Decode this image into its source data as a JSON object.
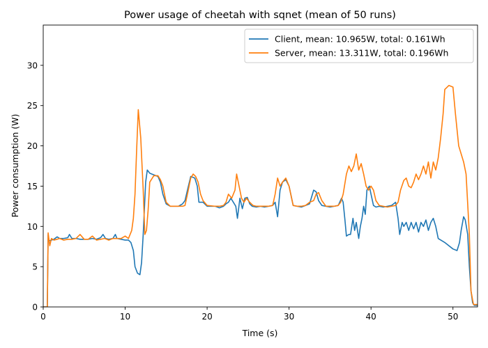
{
  "chart_data": {
    "type": "line",
    "title": "Power usage of cheetah with sqnet (mean of 50 runs)",
    "xlabel": "Time (s)",
    "ylabel": "Power consumption (W)",
    "xlim": [
      0,
      53
    ],
    "ylim": [
      0,
      35
    ],
    "xticks": [
      0,
      10,
      20,
      30,
      40,
      50
    ],
    "yticks": [
      0,
      5,
      10,
      15,
      20,
      25,
      30
    ],
    "grid": false,
    "legend_position": "top-right",
    "series": [
      {
        "name": "Client, mean: 10.965W, total: 0.161Wh",
        "color": "#1f77b4",
        "x": [
          0,
          0.5,
          0.6,
          0.7,
          1.0,
          1.3,
          1.7,
          2.0,
          2.5,
          3.0,
          3.2,
          3.5,
          4.0,
          4.5,
          5.0,
          5.5,
          6.0,
          6.5,
          7.0,
          7.3,
          7.6,
          8.0,
          8.5,
          8.8,
          9.0,
          9.5,
          10.0,
          10.4,
          10.7,
          11.0,
          11.2,
          11.5,
          11.8,
          12.0,
          12.2,
          12.5,
          12.7,
          13.0,
          13.5,
          14.0,
          14.3,
          14.6,
          15.0,
          15.5,
          16.0,
          16.5,
          17.0,
          17.3,
          17.6,
          18.0,
          18.5,
          18.8,
          19.0,
          19.5,
          20.0,
          21.0,
          21.5,
          22.0,
          22.3,
          22.6,
          22.9,
          23.2,
          23.5,
          23.7,
          24.0,
          24.3,
          24.6,
          24.9,
          25.2,
          25.5,
          26.0,
          26.5,
          27.0,
          27.5,
          28.0,
          28.3,
          28.6,
          28.9,
          29.2,
          29.6,
          30.0,
          30.5,
          31.0,
          31.5,
          32.0,
          32.5,
          33.0,
          33.3,
          33.6,
          34.0,
          34.5,
          35.0,
          35.5,
          36.0,
          36.4,
          36.6,
          36.8,
          37.0,
          37.3,
          37.5,
          37.8,
          38.0,
          38.2,
          38.5,
          38.7,
          38.9,
          39.1,
          39.3,
          39.5,
          39.8,
          40.0,
          40.3,
          40.6,
          41.0,
          41.5,
          42.0,
          42.5,
          43.0,
          43.3,
          43.5,
          43.8,
          44.0,
          44.3,
          44.6,
          44.9,
          45.2,
          45.5,
          45.8,
          46.1,
          46.4,
          46.7,
          47.0,
          47.3,
          47.6,
          47.9,
          48.2,
          49.0,
          50.0,
          50.5,
          50.8,
          51.0,
          51.3,
          51.5,
          51.8,
          52.0,
          52.2,
          52.4,
          52.6,
          53.0
        ],
        "y": [
          0,
          0,
          9.0,
          8.2,
          8.3,
          8.4,
          8.7,
          8.5,
          8.5,
          8.6,
          9.0,
          8.5,
          8.5,
          8.4,
          8.4,
          8.4,
          8.5,
          8.4,
          8.6,
          9.0,
          8.5,
          8.4,
          8.5,
          9.0,
          8.5,
          8.4,
          8.3,
          8.3,
          8.0,
          7.0,
          5.0,
          4.2,
          4.0,
          5.5,
          9.0,
          15.5,
          17.0,
          16.6,
          16.4,
          16.2,
          15.5,
          14.0,
          12.8,
          12.5,
          12.5,
          12.5,
          12.8,
          13.2,
          14.5,
          16.2,
          16.0,
          15.0,
          13.0,
          13.0,
          12.5,
          12.5,
          12.3,
          12.5,
          12.8,
          13.0,
          13.5,
          13.0,
          12.5,
          11.0,
          13.5,
          12.2,
          13.5,
          13.6,
          12.8,
          12.5,
          12.4,
          12.5,
          12.4,
          12.5,
          12.6,
          13.0,
          11.2,
          14.5,
          15.5,
          15.8,
          15.0,
          12.6,
          12.5,
          12.4,
          12.6,
          12.8,
          14.5,
          14.3,
          13.2,
          12.6,
          12.5,
          12.4,
          12.5,
          12.6,
          13.5,
          13.0,
          11.0,
          8.8,
          9.0,
          9.0,
          11.0,
          9.5,
          10.5,
          8.5,
          10.0,
          11.0,
          12.5,
          11.5,
          14.5,
          15.0,
          14.0,
          12.6,
          12.4,
          12.5,
          12.4,
          12.5,
          12.6,
          13.0,
          11.0,
          9.0,
          10.5,
          10.0,
          10.5,
          9.5,
          10.5,
          9.7,
          10.5,
          9.3,
          10.5,
          10.0,
          10.8,
          9.5,
          10.5,
          11.0,
          10.0,
          8.5,
          8.0,
          7.2,
          7.0,
          8.0,
          9.5,
          11.2,
          10.8,
          9.0,
          5.0,
          2.0,
          0.5,
          0.2,
          0.2
        ]
      },
      {
        "name": "Server, mean: 13.311W, total: 0.196Wh",
        "color": "#ff7f0e",
        "x": [
          0,
          0.5,
          0.6,
          0.8,
          1.0,
          1.3,
          1.7,
          2.0,
          2.5,
          3.0,
          3.5,
          4.0,
          4.5,
          5.0,
          5.5,
          6.0,
          6.5,
          7.0,
          7.5,
          8.0,
          8.5,
          9.0,
          9.5,
          10.0,
          10.4,
          10.8,
          11.0,
          11.2,
          11.4,
          11.6,
          11.9,
          12.2,
          12.4,
          12.6,
          12.8,
          13.0,
          13.5,
          14.0,
          14.3,
          14.6,
          15.0,
          15.5,
          16.0,
          16.5,
          17.0,
          17.3,
          17.6,
          18.0,
          18.3,
          18.6,
          18.9,
          19.2,
          19.5,
          20.0,
          21.0,
          21.5,
          22.0,
          22.3,
          22.6,
          23.0,
          23.4,
          23.6,
          23.9,
          24.2,
          24.5,
          24.8,
          25.2,
          25.6,
          26.0,
          26.5,
          27.0,
          27.5,
          28.0,
          28.3,
          28.6,
          28.9,
          29.2,
          29.6,
          30.0,
          30.5,
          31.0,
          31.5,
          32.0,
          32.5,
          33.0,
          33.3,
          33.6,
          34.0,
          34.5,
          35.0,
          35.5,
          36.0,
          36.3,
          36.6,
          37.0,
          37.3,
          37.6,
          37.9,
          38.2,
          38.5,
          38.8,
          39.1,
          39.4,
          39.7,
          40.0,
          40.3,
          40.6,
          41.0,
          41.5,
          42.0,
          42.5,
          43.0,
          43.3,
          43.6,
          44.0,
          44.3,
          44.6,
          44.9,
          45.2,
          45.5,
          45.8,
          46.1,
          46.4,
          46.7,
          47.0,
          47.3,
          47.6,
          47.9,
          48.2,
          48.5,
          48.8,
          49.0,
          49.5,
          50.0,
          50.3,
          50.7,
          51.0,
          51.3,
          51.6,
          52.0,
          52.2,
          52.5,
          53.0
        ],
        "y": [
          0,
          0,
          9.2,
          7.6,
          8.5,
          8.3,
          8.4,
          8.5,
          8.3,
          8.4,
          8.4,
          8.5,
          9.0,
          8.4,
          8.4,
          8.8,
          8.3,
          8.4,
          8.5,
          8.3,
          8.5,
          8.5,
          8.5,
          8.8,
          8.5,
          9.5,
          11.0,
          14.0,
          19.5,
          24.5,
          21.0,
          14.5,
          9.0,
          9.5,
          12.0,
          15.5,
          16.3,
          16.3,
          15.8,
          15.0,
          13.0,
          12.5,
          12.5,
          12.5,
          12.5,
          12.6,
          14.0,
          16.0,
          16.5,
          16.2,
          15.5,
          14.0,
          13.2,
          12.6,
          12.5,
          12.5,
          12.6,
          13.0,
          14.0,
          13.5,
          14.5,
          16.5,
          15.0,
          13.5,
          13.0,
          13.5,
          13.0,
          12.6,
          12.5,
          12.5,
          12.5,
          12.5,
          12.6,
          14.0,
          16.0,
          15.0,
          15.5,
          16.0,
          15.0,
          12.6,
          12.5,
          12.5,
          12.6,
          13.0,
          13.2,
          14.0,
          14.2,
          13.2,
          12.5,
          12.5,
          12.5,
          12.6,
          13.0,
          14.0,
          16.5,
          17.5,
          16.8,
          17.5,
          19.0,
          17.0,
          17.8,
          16.5,
          15.0,
          14.5,
          15.0,
          14.5,
          13.2,
          12.6,
          12.5,
          12.4,
          12.5,
          12.6,
          13.0,
          14.5,
          15.7,
          16.0,
          15.0,
          14.8,
          15.5,
          16.5,
          15.8,
          16.5,
          17.5,
          16.5,
          18.0,
          16.0,
          18.0,
          17.0,
          18.5,
          21.0,
          24.0,
          27.0,
          27.5,
          27.3,
          24.0,
          20.0,
          19.0,
          18.0,
          16.5,
          9.0,
          2.0,
          0.3,
          0.3
        ]
      }
    ]
  }
}
